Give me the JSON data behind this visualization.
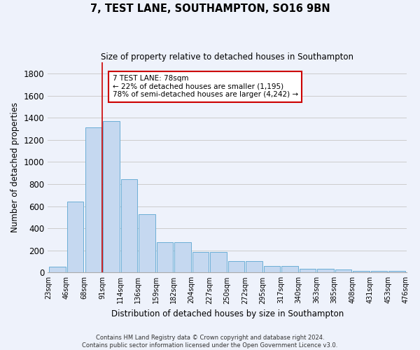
{
  "title": "7, TEST LANE, SOUTHAMPTON, SO16 9BN",
  "subtitle": "Size of property relative to detached houses in Southampton",
  "xlabel": "Distribution of detached houses by size in Southampton",
  "ylabel": "Number of detached properties",
  "bar_values": [
    50,
    640,
    1310,
    1370,
    845,
    530,
    275,
    275,
    185,
    185,
    105,
    105,
    60,
    60,
    35,
    35,
    25,
    15,
    15,
    15
  ],
  "bar_labels": [
    "23sqm",
    "46sqm",
    "68sqm",
    "91sqm",
    "114sqm",
    "136sqm",
    "159sqm",
    "182sqm",
    "204sqm",
    "227sqm",
    "250sqm",
    "272sqm",
    "295sqm",
    "317sqm",
    "340sqm",
    "363sqm",
    "385sqm",
    "408sqm",
    "431sqm",
    "453sqm",
    "476sqm"
  ],
  "bar_color": "#c5d8f0",
  "bar_edge_color": "#6baed6",
  "red_line_bin_index": 3,
  "annotation_text": "7 TEST LANE: 78sqm\n← 22% of detached houses are smaller (1,195)\n78% of semi-detached houses are larger (4,242) →",
  "annotation_box_color": "#ffffff",
  "annotation_box_edge_color": "#cc0000",
  "ylim": [
    0,
    1900
  ],
  "yticks": [
    0,
    200,
    400,
    600,
    800,
    1000,
    1200,
    1400,
    1600,
    1800
  ],
  "grid_color": "#cccccc",
  "background_color": "#eef2fb",
  "footer_line1": "Contains HM Land Registry data © Crown copyright and database right 2024.",
  "footer_line2": "Contains public sector information licensed under the Open Government Licence v3.0."
}
